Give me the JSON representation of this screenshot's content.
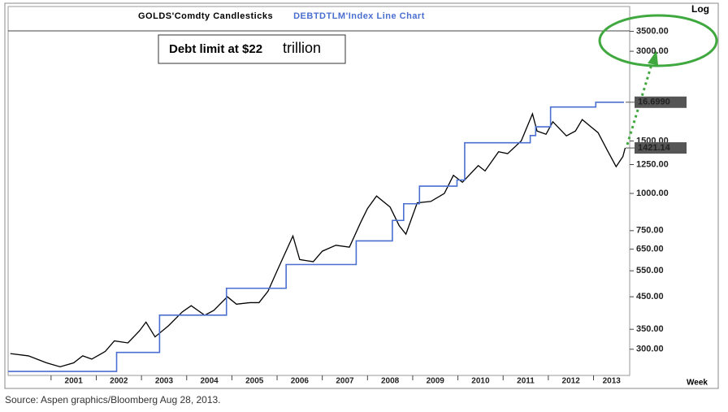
{
  "chart_data": {
    "type": "line",
    "y_scale": "log",
    "y2_scale": "log",
    "xlim": [
      2000.05,
      2013.8
    ],
    "xticks": [
      2001,
      2002,
      2003,
      2004,
      2005,
      2006,
      2007,
      2008,
      2009,
      2010,
      2011,
      2012,
      2013
    ],
    "ylim": [
      245,
      4240
    ],
    "yticks": [
      {
        "value": 300,
        "label": "300.00"
      },
      {
        "value": 350,
        "label": "350.00"
      },
      {
        "value": 450,
        "label": "450.00"
      },
      {
        "value": 550,
        "label": "550.00"
      },
      {
        "value": 650,
        "label": "650.00"
      },
      {
        "value": 750,
        "label": "750.00"
      },
      {
        "value": 1000,
        "label": "1000.00"
      },
      {
        "value": 1250,
        "label": "1250.00"
      },
      {
        "value": 1500,
        "label": "1500.00"
      },
      {
        "value": 3000,
        "label": "3000.00"
      },
      {
        "value": 3500,
        "label": "3500.00"
      }
    ],
    "y2lim": [
      5.86,
      24.1
    ],
    "y_axis_label": "Log",
    "x_axis_label": "Week",
    "annotation": {
      "bold": "Debt limit at $22",
      "rest": "trillion"
    },
    "source": "Source: Aspen graphics/Bloomberg Aug 28, 2013.",
    "series": [
      {
        "name": "GOLDS'Comdty Candlesticks",
        "color": "#000000",
        "x": [
          2000.1,
          2000.5,
          2000.9,
          2001.2,
          2001.5,
          2001.7,
          2001.9,
          2002.2,
          2002.4,
          2002.7,
          2002.95,
          2003.1,
          2003.3,
          2003.6,
          2003.9,
          2004.1,
          2004.4,
          2004.6,
          2004.9,
          2005.1,
          2005.4,
          2005.6,
          2005.8,
          2006.0,
          2006.35,
          2006.5,
          2006.8,
          2007.0,
          2007.3,
          2007.6,
          2007.85,
          2008.0,
          2008.2,
          2008.5,
          2008.7,
          2008.85,
          2009.1,
          2009.4,
          2009.7,
          2009.9,
          2010.1,
          2010.45,
          2010.6,
          2010.9,
          2011.1,
          2011.4,
          2011.65,
          2011.75,
          2011.95,
          2012.1,
          2012.4,
          2012.6,
          2012.75,
          2012.95,
          2013.1,
          2013.3,
          2013.5,
          2013.65,
          2013.7
        ],
        "values": [
          290,
          285,
          270,
          262,
          270,
          285,
          278,
          295,
          320,
          315,
          345,
          370,
          330,
          360,
          400,
          420,
          390,
          405,
          450,
          425,
          430,
          430,
          470,
          550,
          720,
          600,
          590,
          640,
          670,
          660,
          800,
          890,
          980,
          900,
          780,
          730,
          930,
          940,
          1000,
          1150,
          1090,
          1240,
          1190,
          1380,
          1360,
          1500,
          1850,
          1620,
          1580,
          1740,
          1560,
          1620,
          1770,
          1670,
          1600,
          1400,
          1230,
          1330,
          1421.14
        ],
        "value_labels": [
          null,
          null,
          null,
          null,
          null,
          null,
          null,
          null,
          null,
          null,
          null,
          null,
          null,
          null,
          null,
          null,
          null,
          null,
          null,
          null,
          null,
          null,
          null,
          null,
          null,
          null,
          null,
          null,
          null,
          null,
          null,
          null,
          null,
          null,
          null,
          null,
          null,
          null,
          null,
          null,
          null,
          null,
          null,
          null,
          null,
          null,
          null,
          null,
          null,
          null,
          null,
          null,
          null,
          null,
          null,
          null,
          null,
          null,
          "1421.14"
        ]
      },
      {
        "name": "DEBTDTLM'Index Line Chart",
        "color": "#4a6fd0",
        "axis": "y2",
        "step": "post",
        "x": [
          2000.05,
          2002.45,
          2003.4,
          2004.88,
          2006.2,
          2007.75,
          2008.55,
          2008.8,
          2009.15,
          2009.98,
          2010.15,
          2011.6,
          2011.72,
          2012.05,
          2013.05
        ],
        "values": [
          5.95,
          6.4,
          7.384,
          8.184,
          8.965,
          9.815,
          10.615,
          11.315,
          12.104,
          12.394,
          14.294,
          14.694,
          15.194,
          16.394,
          16.699
        ],
        "value_labels": [
          null,
          null,
          null,
          null,
          null,
          null,
          null,
          null,
          null,
          null,
          null,
          null,
          null,
          null,
          "16.6990"
        ]
      }
    ]
  }
}
